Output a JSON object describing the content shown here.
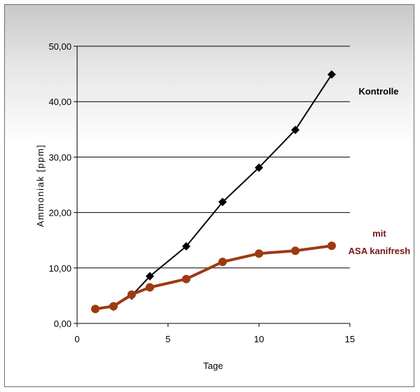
{
  "chart_data": {
    "type": "line",
    "xlabel": "Tage",
    "ylabel": "Ammoniak [ppm]",
    "xlim": [
      0,
      15
    ],
    "ylim": [
      0,
      50
    ],
    "x_ticks": [
      "0",
      "5",
      "10",
      "15"
    ],
    "y_ticks": [
      "0,00",
      "10,00",
      "20,00",
      "30,00",
      "40,00",
      "50,00"
    ],
    "grid": "horizontal",
    "legend": "inline labels at right of lines",
    "series": [
      {
        "name": "Kontrolle",
        "label_lines": [
          "Kontrolle"
        ],
        "color": "#000000",
        "marker": "diamond",
        "x": [
          1,
          2,
          3,
          4,
          6,
          8,
          10,
          12,
          14
        ],
        "y": [
          2.6,
          3.0,
          5.0,
          8.5,
          13.9,
          21.9,
          28.1,
          34.9,
          44.9
        ]
      },
      {
        "name": "mit ASA kanifresh",
        "label_lines": [
          "mit",
          "ASA kanifresh"
        ],
        "color": "#9C3A12",
        "marker": "circle",
        "x": [
          1,
          2,
          3,
          4,
          6,
          8,
          10,
          12,
          14
        ],
        "y": [
          2.6,
          3.1,
          5.2,
          6.5,
          8.0,
          11.1,
          12.6,
          13.1,
          14.0
        ]
      }
    ]
  }
}
